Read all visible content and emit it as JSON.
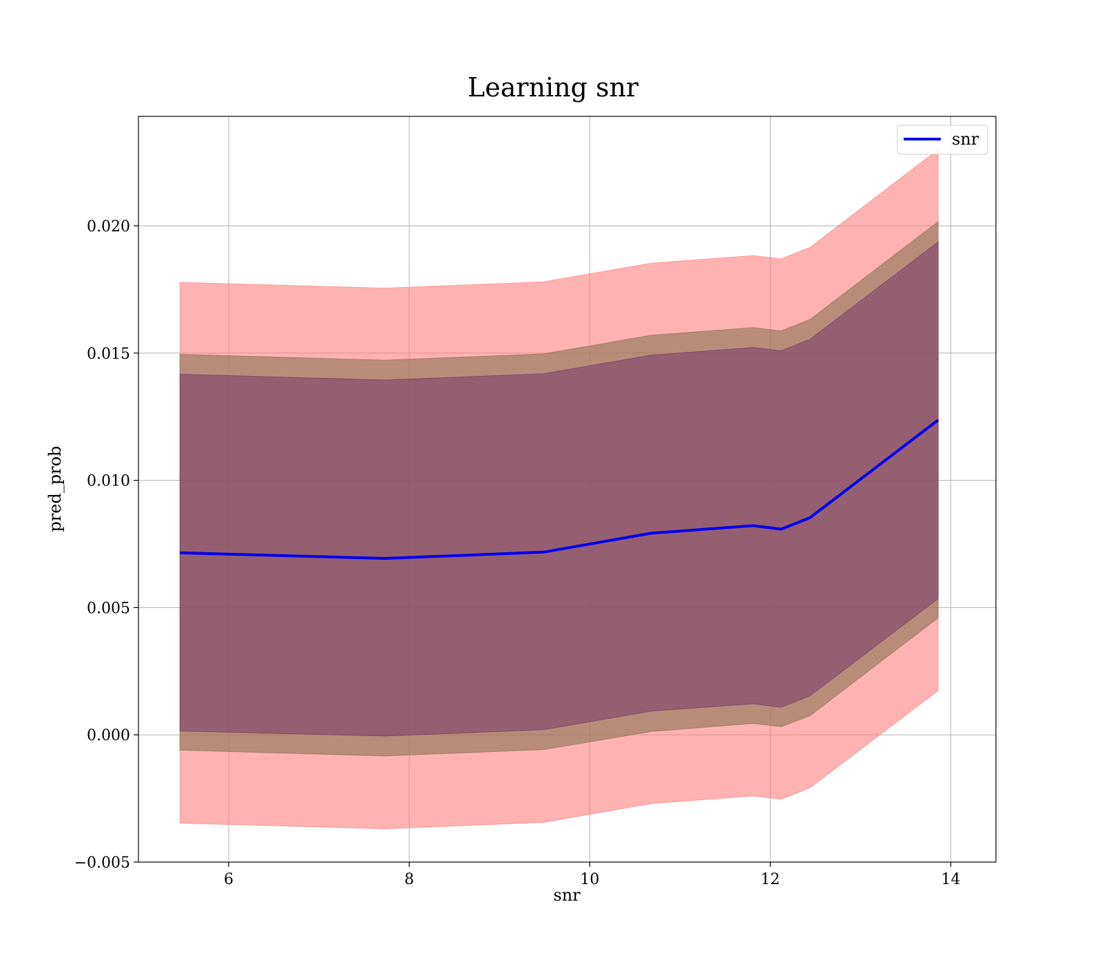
{
  "chart_data": {
    "type": "line",
    "title": "Learning snr",
    "xlabel": "snr",
    "ylabel": "pred_prob",
    "xlim": [
      5.0,
      14.5
    ],
    "ylim": [
      -0.005,
      0.0243
    ],
    "xticks": [
      6,
      8,
      10,
      12,
      14
    ],
    "xtick_labels": [
      "6",
      "8",
      "10",
      "12",
      "14"
    ],
    "yticks": [
      -0.005,
      0.0,
      0.005,
      0.01,
      0.015,
      0.02
    ],
    "ytick_labels": [
      "−0.005",
      "0.000",
      "0.005",
      "0.010",
      "0.015",
      "0.020"
    ],
    "grid": true,
    "legend": {
      "placement": "top-right",
      "entries": [
        "snr"
      ]
    },
    "x": [
      5.46,
      7.73,
      9.49,
      10.68,
      11.81,
      12.12,
      12.44,
      13.86
    ],
    "series": [
      {
        "name": "snr",
        "color": "#0000ee",
        "values": [
          0.00715,
          0.00693,
          0.00718,
          0.00792,
          0.00822,
          0.00808,
          0.00853,
          0.01237
        ]
      }
    ],
    "bands": [
      {
        "color": "#ff7f7f",
        "opacity": 0.6,
        "upper": [
          0.01778,
          0.01755,
          0.0178,
          0.01853,
          0.01883,
          0.0187,
          0.01915,
          0.023
        ],
        "lower": [
          -0.00347,
          -0.00369,
          -0.00344,
          -0.0027,
          -0.0024,
          -0.00253,
          -0.00208,
          0.00174
        ]
      },
      {
        "color": "#8b7355",
        "opacity": 0.6,
        "upper": [
          0.01495,
          0.01472,
          0.01497,
          0.0157,
          0.016,
          0.01587,
          0.01632,
          0.02017
        ],
        "lower": [
          -0.0006,
          -0.00083,
          -0.00058,
          0.00013,
          0.00045,
          0.00032,
          0.00075,
          0.0046
        ]
      },
      {
        "color": "#7a3a6a",
        "opacity": 0.55,
        "upper": [
          0.01417,
          0.01394,
          0.01419,
          0.01492,
          0.01522,
          0.01509,
          0.01554,
          0.01937
        ],
        "lower": [
          0.00015,
          -5e-05,
          0.0002,
          0.00093,
          0.00122,
          0.00108,
          0.00153,
          0.00535
        ]
      }
    ]
  }
}
